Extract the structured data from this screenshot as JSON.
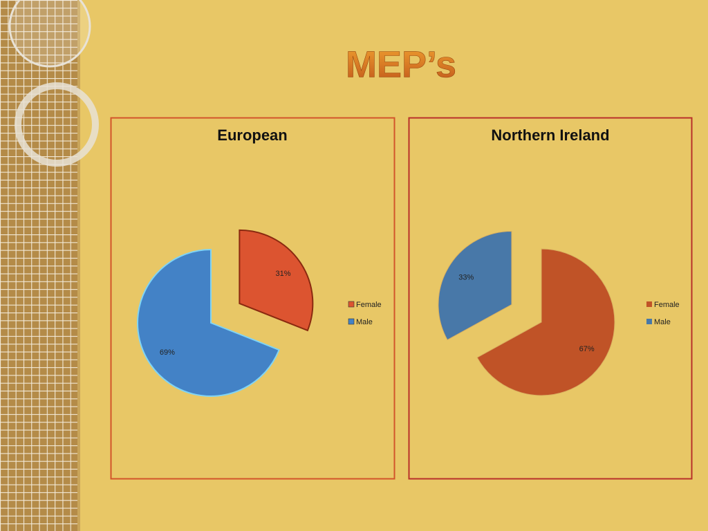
{
  "slide": {
    "title": "MEP’s"
  },
  "chart_data": [
    {
      "type": "pie",
      "title": "European",
      "categories": [
        "Female",
        "Male"
      ],
      "values": [
        31,
        69
      ],
      "value_labels": [
        "31%",
        "69%"
      ],
      "colors": [
        "#dc5430",
        "#4382c6"
      ],
      "legend": "right"
    },
    {
      "type": "pie",
      "title": "Northern Ireland",
      "categories": [
        "Female",
        "Male"
      ],
      "values": [
        67,
        33
      ],
      "value_labels": [
        "67%",
        "33%"
      ],
      "colors": [
        "#c05327",
        "#4878a8"
      ],
      "legend": "right"
    }
  ]
}
